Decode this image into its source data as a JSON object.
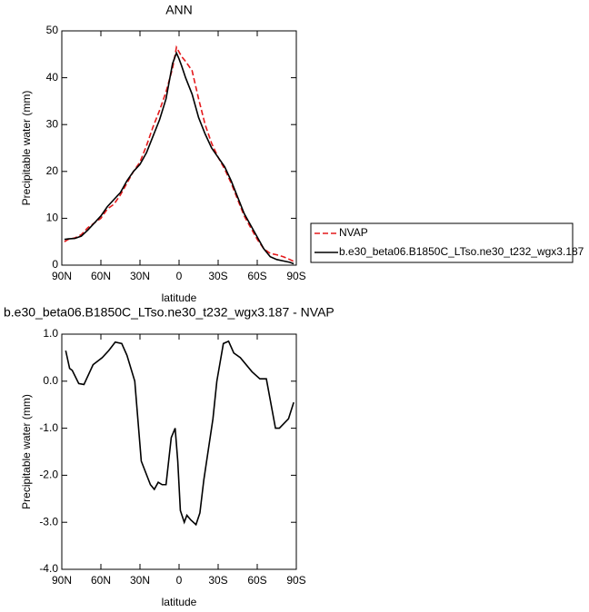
{
  "chart_data": [
    {
      "type": "line",
      "title": "ANN",
      "xlabel": "latitude",
      "ylabel": "Precipitable water (mm)",
      "x": [
        88,
        85,
        80,
        75,
        70,
        65,
        60,
        55,
        50,
        45,
        40,
        35,
        30,
        25,
        20,
        15,
        10,
        5,
        2,
        0,
        -2,
        -5,
        -10,
        -15,
        -20,
        -25,
        -30,
        -35,
        -40,
        -45,
        -50,
        -55,
        -60,
        -65,
        -70,
        -75,
        -80,
        -85,
        -88
      ],
      "series": [
        {
          "name": "NVAP",
          "color": "#e41a1c",
          "dashed": true,
          "values": [
            5,
            5.5,
            5.8,
            6.5,
            8,
            9,
            10,
            12,
            13,
            15,
            17.5,
            20,
            22,
            25.5,
            29.5,
            33,
            37,
            42,
            46.5,
            45.5,
            44.5,
            43.5,
            41.5,
            35.5,
            30,
            26,
            23,
            20.5,
            17.5,
            14,
            10.5,
            8,
            5.5,
            3.5,
            2.5,
            2.2,
            1.8,
            1.2,
            0.8
          ]
        },
        {
          "name": "b.e30_beta06.B1850C_LTso.ne30_t232_wgx3.187",
          "color": "#000000",
          "dashed": false,
          "values": [
            5.5,
            5.6,
            5.7,
            6.2,
            7.5,
            9,
            10.5,
            12.5,
            14,
            15.5,
            18,
            20,
            21.5,
            24,
            27.5,
            31,
            35.5,
            43,
            45.3,
            44,
            42.5,
            40,
            36.5,
            31.5,
            28,
            25,
            23,
            21,
            18,
            14.5,
            11,
            8.5,
            6,
            3.5,
            1.8,
            1.2,
            0.9,
            0.6,
            0.3
          ]
        }
      ],
      "xlim": [
        90,
        -90
      ],
      "xticks": [
        {
          "value": 90,
          "label": "90N"
        },
        {
          "value": 60,
          "label": "60N"
        },
        {
          "value": 30,
          "label": "30N"
        },
        0,
        {
          "value": -30,
          "label": "30S"
        },
        {
          "value": -60,
          "label": "60S"
        },
        {
          "value": -90,
          "label": "90S"
        }
      ],
      "ylim": [
        0,
        50
      ],
      "yticks": [
        0,
        10,
        20,
        30,
        40,
        50
      ],
      "legend": "outside-right"
    },
    {
      "type": "line",
      "title": "b.e30_beta06.B1850C_LTso.ne30_t232_wgx3.187 - NVAP",
      "xlabel": "latitude",
      "ylabel": "Precipitable water (mm)",
      "x": [
        87,
        84,
        82,
        77,
        73,
        66,
        59,
        54,
        49,
        44,
        40,
        34,
        29,
        22,
        19,
        16,
        13,
        10,
        6,
        3,
        1,
        -1,
        -4,
        -6,
        -9,
        -13,
        -16,
        -19,
        -26,
        -29,
        -34,
        -38,
        -42,
        -47,
        -56,
        -62,
        -67,
        -74,
        -77,
        -84,
        -88
      ],
      "color": "#000000",
      "values": [
        0.65,
        0.27,
        0.23,
        -0.05,
        -0.07,
        0.35,
        0.5,
        0.65,
        0.83,
        0.8,
        0.55,
        0,
        -1.7,
        -2.2,
        -2.3,
        -2.15,
        -2.2,
        -2.2,
        -1.2,
        -1.0,
        -1.7,
        -2.75,
        -3.0,
        -2.85,
        -2.95,
        -3.05,
        -2.8,
        -2.1,
        -0.8,
        0,
        0.8,
        0.85,
        0.6,
        0.5,
        0.2,
        0.05,
        0.05,
        -1.0,
        -1.0,
        -0.8,
        -0.45
      ],
      "xlim": [
        90,
        -90
      ],
      "xticks": [
        {
          "value": 90,
          "label": "90N"
        },
        {
          "value": 60,
          "label": "60N"
        },
        {
          "value": 30,
          "label": "30N"
        },
        0,
        {
          "value": -30,
          "label": "30S"
        },
        {
          "value": -60,
          "label": "60S"
        },
        {
          "value": -90,
          "label": "90S"
        }
      ],
      "ylim": [
        -4,
        1
      ],
      "yticks": [
        {
          "value": 1,
          "label": "1.0"
        },
        {
          "value": 0,
          "label": "0.0"
        },
        {
          "value": -1,
          "label": "-1.0"
        },
        {
          "value": -2,
          "label": "-2.0"
        },
        {
          "value": -3,
          "label": "-3.0"
        },
        {
          "value": -4,
          "label": "-4.0"
        }
      ]
    }
  ]
}
